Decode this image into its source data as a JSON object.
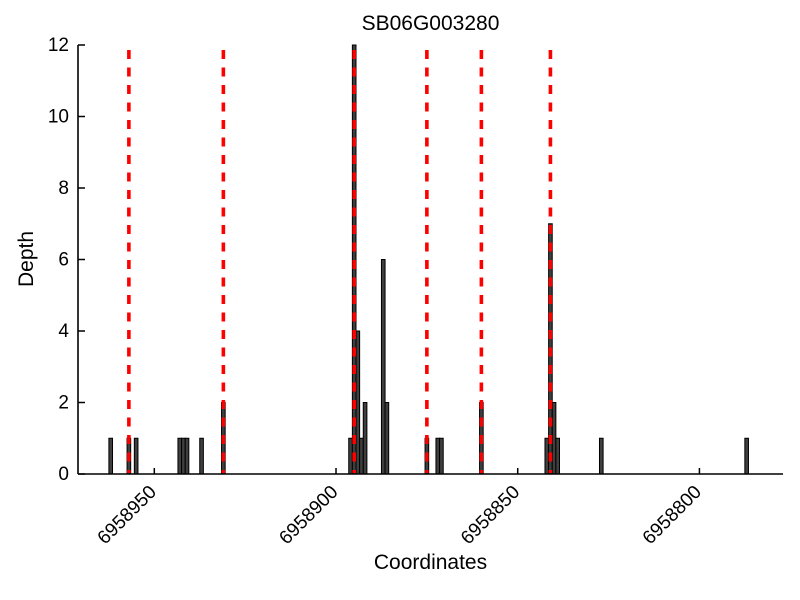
{
  "figure": {
    "title": "SB06G003280",
    "xlabel": "Coordinates",
    "ylabel": "Depth"
  },
  "chart_data": {
    "type": "bar",
    "title": "SB06G003280",
    "xlabel": "Coordinates",
    "ylabel": "Depth",
    "x_axis_reversed": true,
    "xlim": [
      6958971,
      6958777
    ],
    "ylim": [
      0,
      12
    ],
    "x_ticks": [
      6958950,
      6958900,
      6958850,
      6958800
    ],
    "x_tick_labels": [
      "6958950",
      "6958900",
      "6958850",
      "6958800"
    ],
    "y_ticks": [
      0,
      2,
      4,
      6,
      8,
      10,
      12
    ],
    "y_tick_labels": [
      "0",
      "2",
      "4",
      "6",
      "8",
      "10",
      "12"
    ],
    "grid": false,
    "legend": false,
    "bar_width_units": 1,
    "bar_fill_color": "#3f3f3f",
    "bar_edge_color": "#000000",
    "bars": [
      {
        "coordinate": 6958962,
        "depth": 1
      },
      {
        "coordinate": 6958957,
        "depth": 1
      },
      {
        "coordinate": 6958955,
        "depth": 1
      },
      {
        "coordinate": 6958943,
        "depth": 1
      },
      {
        "coordinate": 6958942,
        "depth": 1
      },
      {
        "coordinate": 6958941,
        "depth": 1
      },
      {
        "coordinate": 6958937,
        "depth": 1
      },
      {
        "coordinate": 6958931,
        "depth": 2
      },
      {
        "coordinate": 6958896,
        "depth": 1
      },
      {
        "coordinate": 6958895,
        "depth": 12
      },
      {
        "coordinate": 6958894,
        "depth": 4
      },
      {
        "coordinate": 6958893,
        "depth": 1
      },
      {
        "coordinate": 6958892,
        "depth": 2
      },
      {
        "coordinate": 6958887,
        "depth": 6
      },
      {
        "coordinate": 6958886,
        "depth": 2
      },
      {
        "coordinate": 6958875,
        "depth": 1
      },
      {
        "coordinate": 6958872,
        "depth": 1
      },
      {
        "coordinate": 6958871,
        "depth": 1
      },
      {
        "coordinate": 6958860,
        "depth": 2
      },
      {
        "coordinate": 6958842,
        "depth": 1
      },
      {
        "coordinate": 6958841,
        "depth": 7
      },
      {
        "coordinate": 6958840,
        "depth": 2
      },
      {
        "coordinate": 6958839,
        "depth": 1
      },
      {
        "coordinate": 6958827,
        "depth": 1
      },
      {
        "coordinate": 6958787,
        "depth": 1
      }
    ],
    "red_dashed_lines": {
      "color": "#ff0000",
      "positions": [
        6958957,
        6958931,
        6958895,
        6958875,
        6958860,
        6958841
      ]
    }
  }
}
